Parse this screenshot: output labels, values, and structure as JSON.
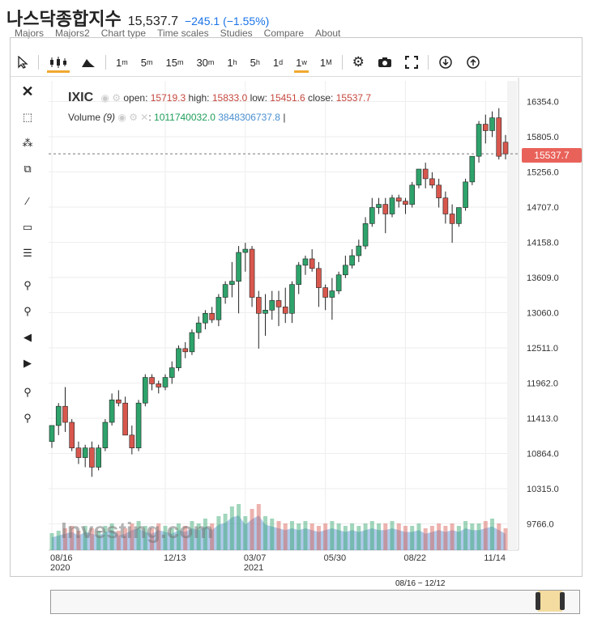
{
  "header": {
    "title": "나스닥종합지수",
    "price": "15,537.7",
    "change": "−245.1 (−1.55%)"
  },
  "menu": [
    "Majors",
    "Majors2",
    "Chart type",
    "Time scales",
    "Studies",
    "Compare",
    "About"
  ],
  "toolbar": {
    "timeframes": [
      {
        "label": "1",
        "sup": "m"
      },
      {
        "label": "5",
        "sup": "m"
      },
      {
        "label": "15",
        "sup": "m"
      },
      {
        "label": "30",
        "sup": "m"
      },
      {
        "label": "1",
        "sup": "h"
      },
      {
        "label": "5",
        "sup": "h"
      },
      {
        "label": "1",
        "sup": "d"
      },
      {
        "label": "1",
        "sup": "w"
      },
      {
        "label": "1",
        "sup": "M"
      }
    ],
    "active_timeframe_index": 7
  },
  "legend": {
    "symbol": "IXIC",
    "open_label": "open:",
    "open": "15719.3",
    "high_label": "high:",
    "high": "15833.0",
    "low_label": "low:",
    "low": "15451.6",
    "close_label": "close:",
    "close": "15537.7",
    "volume_label": "Volume",
    "volume_param": "(9)",
    "volume_value1": "1011740032.0",
    "volume_value2": "3848306737.8",
    "volume_sep": "|"
  },
  "price_tag": "15537.7",
  "watermark": "Investing.com",
  "navigator": {
    "range_label": "08/16 − 12/12"
  },
  "colors": {
    "up": "#2ea36b",
    "down": "#d8574d",
    "accent": "#f0a830",
    "volume_area": "#6f9fd8"
  },
  "chart_data": {
    "type": "candlestick",
    "y_axis_ticks": [
      16354.0,
      15805.0,
      15256.0,
      14707.0,
      14158.0,
      13609.0,
      13060.0,
      12511.0,
      11962.0,
      11413.0,
      10864.0,
      10315.0,
      9766.0
    ],
    "y_axis_labels": [
      "16354.0",
      "15805.0",
      "15256.0",
      "14707.0",
      "14158.0",
      "13609.0",
      "13060.0",
      "12511.0",
      "11962.0",
      "11413.0",
      "10864.0",
      "10315.0",
      "9766.0"
    ],
    "x_axis_labels": [
      {
        "label": "08/16",
        "sub": "2020",
        "index": 0
      },
      {
        "label": "12/13",
        "sub": "",
        "index": 17
      },
      {
        "label": "03/07",
        "sub": "2021",
        "index": 29
      },
      {
        "label": "05/30",
        "sub": "",
        "index": 41
      },
      {
        "label": "08/22",
        "sub": "",
        "index": 53
      },
      {
        "label": "11/14",
        "sub": "",
        "index": 65
      }
    ],
    "ylim": [
      9600,
      16700
    ],
    "current_price_line": 15537.7,
    "ohlc": [
      [
        11050,
        11300,
        10950,
        11300
      ],
      [
        11300,
        11650,
        11150,
        11600
      ],
      [
        11600,
        11900,
        11200,
        11350
      ],
      [
        11350,
        11400,
        10900,
        10950
      ],
      [
        10950,
        11050,
        10700,
        10800
      ],
      [
        10800,
        11000,
        10650,
        10950
      ],
      [
        10950,
        11050,
        10500,
        10650
      ],
      [
        10650,
        11000,
        10600,
        10950
      ],
      [
        10950,
        11400,
        10900,
        11350
      ],
      [
        11350,
        11800,
        11300,
        11700
      ],
      [
        11700,
        11850,
        11600,
        11650
      ],
      [
        11650,
        11750,
        11150,
        11150
      ],
      [
        11150,
        11300,
        10850,
        10950
      ],
      [
        10950,
        11700,
        10900,
        11650
      ],
      [
        11650,
        12100,
        11600,
        12050
      ],
      [
        12050,
        12100,
        11850,
        11950
      ],
      [
        11950,
        12000,
        11800,
        11900
      ],
      [
        11900,
        12100,
        11850,
        12050
      ],
      [
        12050,
        12300,
        11950,
        12200
      ],
      [
        12200,
        12550,
        12150,
        12500
      ],
      [
        12500,
        12600,
        12350,
        12450
      ],
      [
        12450,
        12800,
        12400,
        12750
      ],
      [
        12750,
        13000,
        12650,
        12900
      ],
      [
        12900,
        13100,
        12800,
        13050
      ],
      [
        13050,
        13150,
        12900,
        12950
      ],
      [
        12950,
        13350,
        12850,
        13300
      ],
      [
        13300,
        13550,
        13200,
        13500
      ],
      [
        13500,
        13850,
        13300,
        13550
      ],
      [
        13550,
        14100,
        13050,
        14000
      ],
      [
        14000,
        14150,
        13700,
        14050
      ],
      [
        14050,
        14100,
        13150,
        13300
      ],
      [
        13300,
        13400,
        12500,
        13050
      ],
      [
        13050,
        13350,
        12700,
        13100
      ],
      [
        13100,
        13400,
        12950,
        13250
      ],
      [
        13250,
        13400,
        12850,
        13150
      ],
      [
        13150,
        13450,
        12900,
        13050
      ],
      [
        13050,
        13550,
        12900,
        13500
      ],
      [
        13500,
        13850,
        13350,
        13800
      ],
      [
        13800,
        13950,
        13650,
        13900
      ],
      [
        13900,
        14050,
        13700,
        13750
      ],
      [
        13750,
        13850,
        13150,
        13450
      ],
      [
        13450,
        13500,
        13100,
        13300
      ],
      [
        13300,
        13600,
        12950,
        13400
      ],
      [
        13400,
        13700,
        13350,
        13650
      ],
      [
        13650,
        13950,
        13600,
        13800
      ],
      [
        13800,
        14050,
        13750,
        13950
      ],
      [
        13950,
        14200,
        13850,
        14100
      ],
      [
        14100,
        14550,
        14050,
        14450
      ],
      [
        14450,
        14850,
        14400,
        14700
      ],
      [
        14700,
        14850,
        14600,
        14750
      ],
      [
        14750,
        14850,
        14300,
        14600
      ],
      [
        14600,
        14900,
        14550,
        14850
      ],
      [
        14850,
        14900,
        14700,
        14800
      ],
      [
        14800,
        14850,
        14600,
        14750
      ],
      [
        14750,
        15100,
        14700,
        15050
      ],
      [
        15050,
        15300,
        15000,
        15300
      ],
      [
        15300,
        15400,
        15000,
        15150
      ],
      [
        15150,
        15250,
        15000,
        15050
      ],
      [
        15050,
        15150,
        14700,
        14850
      ],
      [
        14850,
        14950,
        14450,
        14600
      ],
      [
        14600,
        14750,
        14150,
        14450
      ],
      [
        14450,
        14700,
        14400,
        14700
      ],
      [
        14700,
        15150,
        14650,
        15100
      ],
      [
        15100,
        15500,
        15050,
        15500
      ],
      [
        15500,
        16050,
        15400,
        16000
      ],
      [
        16000,
        16150,
        15700,
        15900
      ],
      [
        15900,
        16200,
        15800,
        16100
      ],
      [
        16100,
        16250,
        15450,
        15500
      ],
      [
        15719.3,
        15833,
        15451.6,
        15537.7
      ]
    ],
    "volumes": [
      0.35,
      0.4,
      0.45,
      0.5,
      0.4,
      0.5,
      0.45,
      0.4,
      0.5,
      0.55,
      0.4,
      0.45,
      0.55,
      0.6,
      0.5,
      0.45,
      0.55,
      0.5,
      0.45,
      0.55,
      0.5,
      0.6,
      0.55,
      0.65,
      0.55,
      0.7,
      0.75,
      0.9,
      0.95,
      0.7,
      0.85,
      0.95,
      0.7,
      0.65,
      0.6,
      0.55,
      0.6,
      0.55,
      0.6,
      0.55,
      0.5,
      0.55,
      0.6,
      0.55,
      0.5,
      0.55,
      0.5,
      0.55,
      0.6,
      0.55,
      0.55,
      0.6,
      0.55,
      0.5,
      0.5,
      0.55,
      0.45,
      0.5,
      0.55,
      0.5,
      0.55,
      0.5,
      0.6,
      0.55,
      0.55,
      0.6,
      0.65,
      0.55,
      0.45
    ]
  }
}
